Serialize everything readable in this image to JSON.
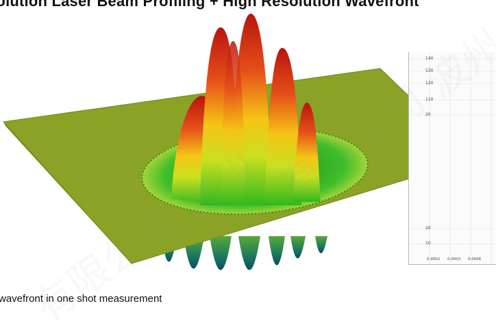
{
  "heading": "solution Laser Beam Profiling + High Resolution Wavefront",
  "caption": "wavefront in one shot measurement",
  "side_chart": {
    "y_ticks": [
      "140",
      "130",
      "120",
      "110",
      "20",
      "20",
      "10"
    ],
    "x_ticks": [
      "0.0002",
      "0.0003",
      "0.0006"
    ]
  },
  "watermark": "有限公司 波州",
  "colors": {
    "surface": "#8aa326",
    "peak_red": "#d41a12",
    "peak_yellow": "#f2e21a",
    "ring_green": "#3fbf2a",
    "background": "#ffffff"
  },
  "icons": []
}
